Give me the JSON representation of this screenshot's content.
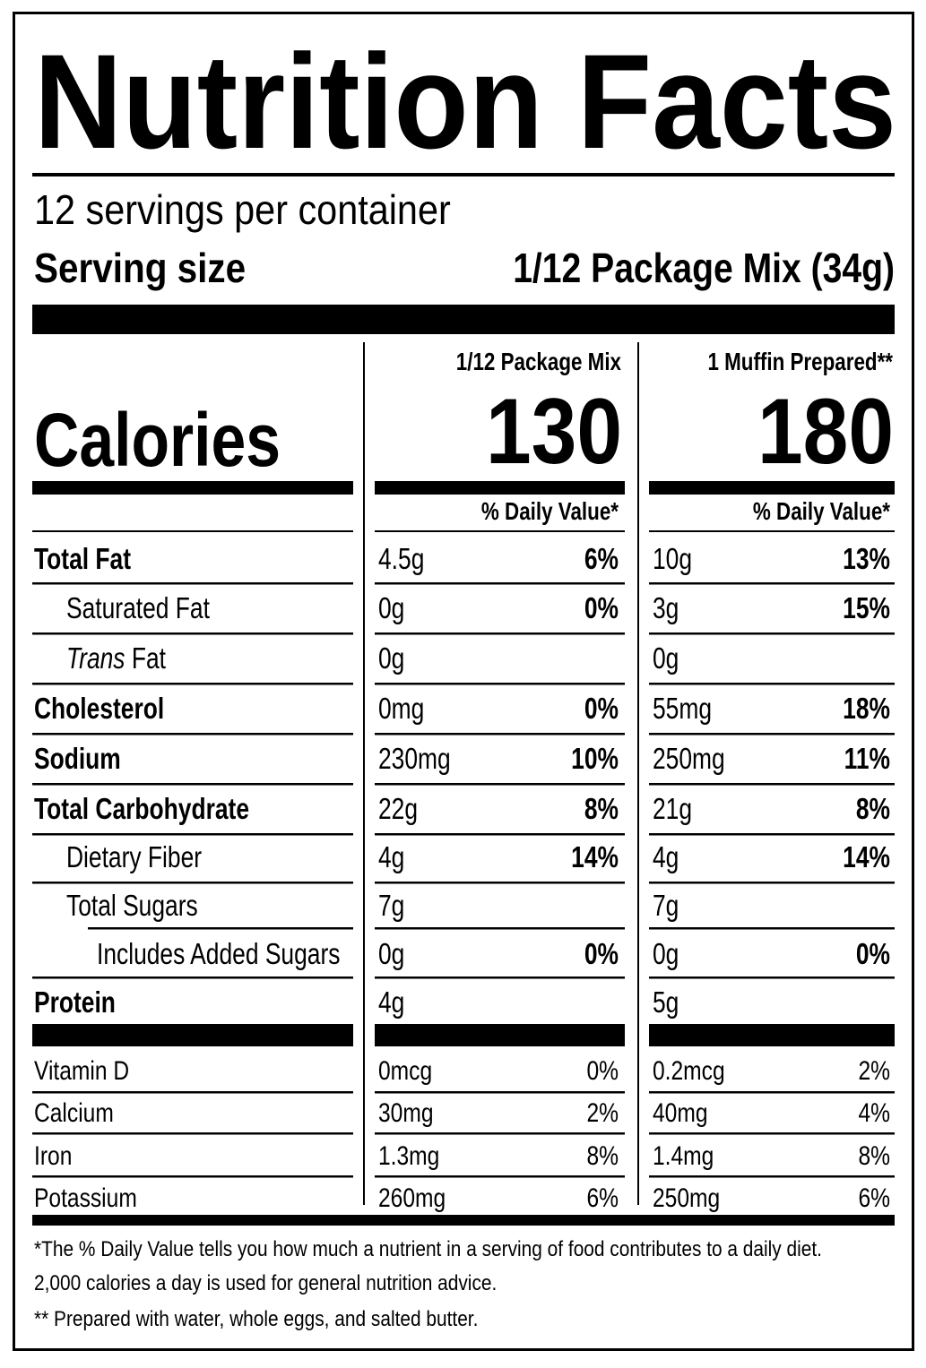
{
  "title": "Nutrition Facts",
  "servings": "12 servings per container",
  "serving_size": {
    "label": "Serving size",
    "value": "1/12 Package Mix (34g)"
  },
  "calories_label": "Calories",
  "columns": [
    {
      "header": "1/12 Package Mix",
      "calories": "130",
      "dv_header": "% Daily Value*"
    },
    {
      "header": "1 Muffin Prepared**",
      "calories": "180",
      "dv_header": "% Daily Value*"
    }
  ],
  "nutrients": [
    {
      "label": "Total Fat",
      "values": [
        [
          "4.5g",
          "6%"
        ],
        [
          "10g",
          "13%"
        ]
      ]
    },
    {
      "label": "Saturated Fat",
      "values": [
        [
          "0g",
          "0%"
        ],
        [
          "3g",
          "15%"
        ]
      ]
    },
    {
      "label_italic": "Trans",
      "label": "Fat",
      "values": [
        [
          "0g"
        ],
        [
          "0g"
        ]
      ]
    },
    {
      "label": "Cholesterol",
      "values": [
        [
          "0mg",
          "0%"
        ],
        [
          "55mg",
          "18%"
        ]
      ]
    },
    {
      "label": "Sodium",
      "values": [
        [
          "230mg",
          "10%"
        ],
        [
          "250mg",
          "11%"
        ]
      ]
    },
    {
      "label": "Total Carbohydrate",
      "values": [
        [
          "22g",
          "8%"
        ],
        [
          "21g",
          "8%"
        ]
      ]
    },
    {
      "label": "Dietary Fiber",
      "values": [
        [
          "4g",
          "14%"
        ],
        [
          "4g",
          "14%"
        ]
      ]
    },
    {
      "label": "Total Sugars",
      "values": [
        [
          "7g"
        ],
        [
          "7g"
        ]
      ]
    },
    {
      "label": "Includes Added Sugars",
      "values": [
        [
          "0g",
          "0%"
        ],
        [
          "0g",
          "0%"
        ]
      ]
    },
    {
      "label": "Protein",
      "values": [
        [
          "4g"
        ],
        [
          "5g"
        ]
      ]
    }
  ],
  "vitamins": [
    {
      "label": "Vitamin D",
      "values": [
        [
          "0mcg",
          "0%"
        ],
        [
          "0.2mcg",
          "2%"
        ]
      ]
    },
    {
      "label": "Calcium",
      "values": [
        [
          "30mg",
          "2%"
        ],
        [
          "40mg",
          "4%"
        ]
      ]
    },
    {
      "label": "Iron",
      "values": [
        [
          "1.3mg",
          "8%"
        ],
        [
          "1.4mg",
          "8%"
        ]
      ]
    },
    {
      "label": "Potassium",
      "values": [
        [
          "260mg",
          "6%"
        ],
        [
          "250mg",
          "6%"
        ]
      ]
    }
  ],
  "footnotes": [
    "*The % Daily Value tells you how much a nutrient in a serving of food contributes to a daily diet.",
    "2,000 calories a day is used for general nutrition advice.",
    "** Prepared with water, whole eggs, and salted butter."
  ]
}
